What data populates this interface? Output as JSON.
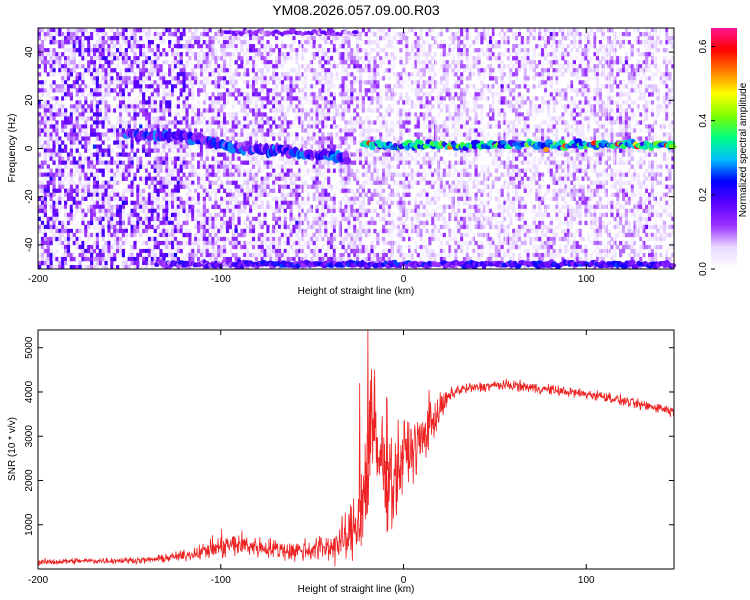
{
  "figure": {
    "title": "YM08.2026.057.09.00.R03"
  },
  "chart_data": [
    {
      "type": "heatmap",
      "xlabel": "Height of straight line (km)",
      "ylabel": "Frequency (Hz)",
      "xlim": [
        -200,
        148
      ],
      "ylim": [
        -50,
        50
      ],
      "x_ticks": [
        "-200",
        "-100",
        "0",
        "100"
      ],
      "x_tick_values": [
        -200,
        -100,
        0,
        100
      ],
      "y_ticks": [
        "-40",
        "-20",
        "0",
        "20",
        "40"
      ],
      "y_tick_values": [
        -40,
        -20,
        0,
        20,
        40
      ],
      "colorbar": {
        "label": "Normalized spectral amplitude",
        "range": [
          0,
          0.65
        ],
        "ticks": [
          "0.0",
          "0.2",
          "0.4",
          "0.6"
        ],
        "tick_values": [
          0.0,
          0.2,
          0.4,
          0.6
        ],
        "colormap": [
          "#ffffff",
          "#e8d8ff",
          "#9b30ff",
          "#5a00ff",
          "#0000ff",
          "#00bfff",
          "#00ff80",
          "#80ff00",
          "#ffff00",
          "#ff8000",
          "#ff0000",
          "#ff1493"
        ]
      },
      "features": {
        "signal_line": {
          "segments": [
            {
              "x": [
                -152,
                -120
              ],
              "freq": [
                6,
                5
              ]
            },
            {
              "x": [
                -120,
                -95
              ],
              "freq": [
                5,
                1
              ]
            },
            {
              "x": [
                -95,
                -30
              ],
              "freq": [
                1,
                -4
              ]
            },
            {
              "x": [
                -22,
                148
              ],
              "freq": [
                1.5,
                1.5
              ]
            }
          ]
        },
        "low_band": {
          "x": [
            -135,
            148
          ],
          "freq": -48
        },
        "top_band": {
          "x": [
            -100,
            -25
          ],
          "freq": 48
        }
      }
    },
    {
      "type": "line",
      "xlabel": "Height of straight line (km)",
      "ylabel": "SNR (10 * v/v)",
      "xlim": [
        -200,
        148
      ],
      "ylim": [
        0,
        5400
      ],
      "x_ticks": [
        "-200",
        "-100",
        "0",
        "100"
      ],
      "x_tick_values": [
        -200,
        -100,
        0,
        100
      ],
      "y_ticks": [
        "1000",
        "2000",
        "3000",
        "4000",
        "5000"
      ],
      "y_tick_values": [
        1000,
        2000,
        3000,
        4000,
        5000
      ],
      "series": [
        {
          "color": "#ee2222",
          "x": [
            -200,
            -180,
            -160,
            -140,
            -120,
            -110,
            -100,
            -90,
            -80,
            -70,
            -60,
            -50,
            -40,
            -30,
            -25,
            -20,
            -18,
            -15,
            -10,
            -5,
            0,
            5,
            10,
            15,
            20,
            25,
            30,
            40,
            50,
            60,
            70,
            80,
            90,
            100,
            110,
            120,
            130,
            140,
            148
          ],
          "y": [
            150,
            180,
            190,
            200,
            300,
            400,
            500,
            560,
            500,
            450,
            400,
            450,
            500,
            700,
            1100,
            2000,
            3500,
            2600,
            2300,
            2000,
            2600,
            2700,
            2900,
            3300,
            3600,
            3900,
            4050,
            4100,
            4150,
            4150,
            4100,
            4050,
            4000,
            3950,
            3900,
            3800,
            3700,
            3650,
            3550
          ],
          "noise": [
            60,
            60,
            60,
            60,
            100,
            150,
            250,
            250,
            200,
            200,
            200,
            250,
            300,
            500,
            800,
            1400,
            1400,
            1300,
            1100,
            1000,
            700,
            600,
            500,
            450,
            300,
            150,
            120,
            100,
            100,
            100,
            100,
            100,
            100,
            100,
            100,
            100,
            100,
            100,
            100
          ],
          "spikes": [
            {
              "x": -19.5,
              "y": 5400
            },
            {
              "x": -24,
              "y": 4200
            },
            {
              "x": -16,
              "y": 4350
            },
            {
              "x": -9,
              "y": 3850
            },
            {
              "x": 14,
              "y": 4050
            }
          ]
        }
      ]
    }
  ]
}
